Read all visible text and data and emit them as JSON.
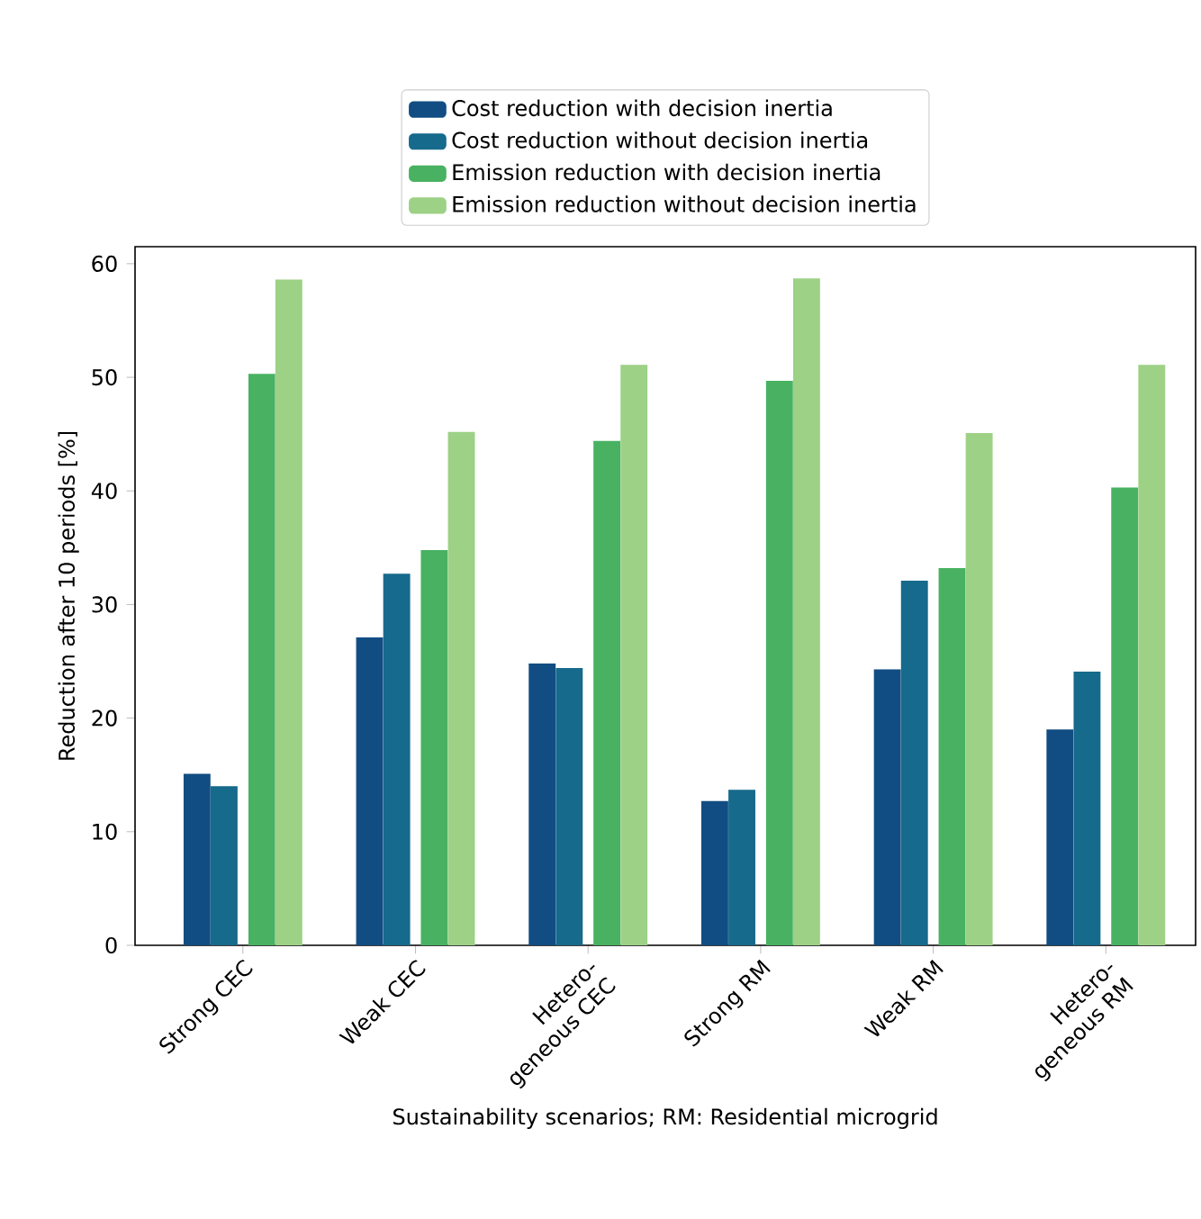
{
  "chart_data": {
    "type": "bar",
    "xlabel": "Sustainability scenarios; RM: Residential microgrid",
    "ylabel": "Reduction after 10 periods [%]",
    "categories": [
      "Strong CEC",
      "Weak CEC",
      "Hetero-geneous CEC",
      "Strong RM",
      "Weak RM",
      "Hetero-geneous RM"
    ],
    "series": [
      {
        "name": "Cost reduction with decision inertia",
        "color": "#114d82",
        "values": [
          15.1,
          27.1,
          24.8,
          12.7,
          24.3,
          19.0
        ]
      },
      {
        "name": "Cost reduction without decision inertia",
        "color": "#166a8c",
        "values": [
          14.0,
          32.7,
          24.4,
          13.7,
          32.1,
          24.1
        ]
      },
      {
        "name": "Emission reduction with decision inertia",
        "color": "#48b262",
        "values": [
          50.3,
          34.8,
          44.4,
          49.7,
          33.2,
          40.3
        ]
      },
      {
        "name": "Emission reduction without decision inertia",
        "color": "#9dd186",
        "values": [
          58.6,
          45.2,
          51.1,
          58.7,
          45.1,
          51.1
        ]
      }
    ],
    "ylim": [
      0,
      61.5
    ],
    "yticks": [
      0,
      10,
      20,
      30,
      40,
      50,
      60
    ],
    "grid": false,
    "legend": "top"
  }
}
